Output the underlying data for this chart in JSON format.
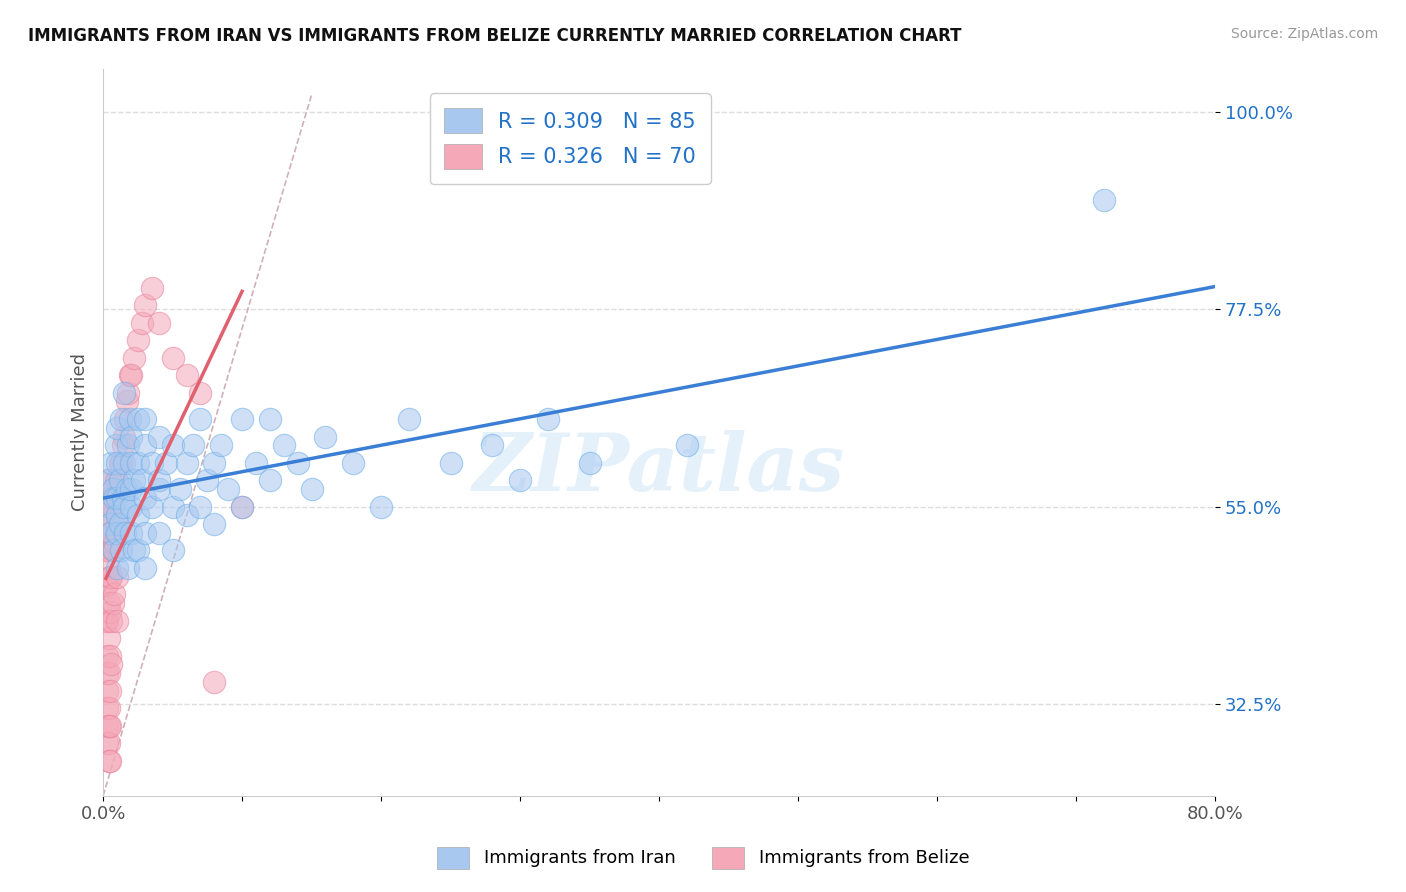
{
  "title": "IMMIGRANTS FROM IRAN VS IMMIGRANTS FROM BELIZE CURRENTLY MARRIED CORRELATION CHART",
  "source": "Source: ZipAtlas.com",
  "xlabel_bottom": "Immigrants from Iran",
  "xlabel_bottom2": "Immigrants from Belize",
  "ylabel": "Currently Married",
  "xlim": [
    0.0,
    0.8
  ],
  "ylim": [
    0.22,
    1.05
  ],
  "xticks": [
    0.0,
    0.1,
    0.2,
    0.3,
    0.4,
    0.5,
    0.6,
    0.7,
    0.8
  ],
  "xtick_labels": [
    "0.0%",
    "",
    "",
    "",
    "",
    "",
    "",
    "",
    "80.0%"
  ],
  "yticks": [
    0.325,
    0.55,
    0.775,
    1.0
  ],
  "ytick_labels": [
    "32.5%",
    "55.0%",
    "77.5%",
    "100.0%"
  ],
  "color_iran": "#a8c8f0",
  "color_belize": "#f4a8b8",
  "color_iran_edge": "#6aaee8",
  "color_belize_edge": "#e8809a",
  "color_iran_line": "#3a7fd5",
  "color_belize_line": "#e06070",
  "color_legend_text": "#2272c8",
  "color_diag": "#d0b0b8",
  "background_color": "#ffffff",
  "grid_color": "#dddddd",
  "watermark": "ZIPatlas",
  "iran_x": [
    0.005,
    0.005,
    0.005,
    0.006,
    0.006,
    0.007,
    0.008,
    0.008,
    0.009,
    0.01,
    0.01,
    0.01,
    0.01,
    0.01,
    0.01,
    0.012,
    0.012,
    0.013,
    0.013,
    0.014,
    0.015,
    0.015,
    0.015,
    0.016,
    0.017,
    0.018,
    0.018,
    0.019,
    0.02,
    0.02,
    0.02,
    0.02,
    0.02,
    0.022,
    0.022,
    0.025,
    0.025,
    0.025,
    0.025,
    0.028,
    0.03,
    0.03,
    0.03,
    0.03,
    0.03,
    0.035,
    0.035,
    0.04,
    0.04,
    0.04,
    0.04,
    0.045,
    0.05,
    0.05,
    0.05,
    0.055,
    0.06,
    0.06,
    0.065,
    0.07,
    0.07,
    0.075,
    0.08,
    0.08,
    0.085,
    0.09,
    0.1,
    0.1,
    0.11,
    0.12,
    0.12,
    0.13,
    0.14,
    0.15,
    0.16,
    0.18,
    0.2,
    0.22,
    0.25,
    0.28,
    0.3,
    0.32,
    0.35,
    0.42,
    0.72
  ],
  "iran_y": [
    0.55,
    0.58,
    0.53,
    0.6,
    0.52,
    0.57,
    0.56,
    0.5,
    0.62,
    0.54,
    0.6,
    0.56,
    0.48,
    0.64,
    0.52,
    0.58,
    0.53,
    0.65,
    0.5,
    0.56,
    0.6,
    0.55,
    0.68,
    0.52,
    0.57,
    0.62,
    0.48,
    0.65,
    0.55,
    0.6,
    0.52,
    0.57,
    0.63,
    0.58,
    0.5,
    0.6,
    0.54,
    0.65,
    0.5,
    0.58,
    0.62,
    0.56,
    0.52,
    0.65,
    0.48,
    0.6,
    0.55,
    0.57,
    0.63,
    0.52,
    0.58,
    0.6,
    0.55,
    0.62,
    0.5,
    0.57,
    0.6,
    0.54,
    0.62,
    0.55,
    0.65,
    0.58,
    0.6,
    0.53,
    0.62,
    0.57,
    0.65,
    0.55,
    0.6,
    0.58,
    0.65,
    0.62,
    0.6,
    0.57,
    0.63,
    0.6,
    0.55,
    0.65,
    0.6,
    0.62,
    0.58,
    0.65,
    0.6,
    0.62,
    0.9
  ],
  "belize_x": [
    0.002,
    0.002,
    0.002,
    0.002,
    0.003,
    0.003,
    0.003,
    0.003,
    0.003,
    0.003,
    0.003,
    0.003,
    0.003,
    0.003,
    0.003,
    0.004,
    0.004,
    0.004,
    0.004,
    0.004,
    0.004,
    0.004,
    0.004,
    0.004,
    0.004,
    0.005,
    0.005,
    0.005,
    0.005,
    0.005,
    0.005,
    0.005,
    0.005,
    0.006,
    0.006,
    0.006,
    0.006,
    0.006,
    0.007,
    0.007,
    0.007,
    0.008,
    0.008,
    0.008,
    0.009,
    0.009,
    0.01,
    0.01,
    0.01,
    0.01,
    0.012,
    0.013,
    0.014,
    0.015,
    0.016,
    0.017,
    0.018,
    0.019,
    0.02,
    0.022,
    0.025,
    0.028,
    0.03,
    0.035,
    0.04,
    0.05,
    0.06,
    0.07,
    0.08,
    0.1
  ],
  "belize_y": [
    0.54,
    0.5,
    0.46,
    0.42,
    0.58,
    0.54,
    0.5,
    0.46,
    0.42,
    0.38,
    0.34,
    0.3,
    0.28,
    0.32,
    0.36,
    0.56,
    0.52,
    0.48,
    0.44,
    0.4,
    0.36,
    0.32,
    0.28,
    0.26,
    0.3,
    0.55,
    0.51,
    0.47,
    0.43,
    0.38,
    0.34,
    0.3,
    0.26,
    0.56,
    0.52,
    0.47,
    0.42,
    0.37,
    0.55,
    0.5,
    0.44,
    0.57,
    0.51,
    0.45,
    0.58,
    0.52,
    0.58,
    0.53,
    0.47,
    0.42,
    0.6,
    0.6,
    0.62,
    0.63,
    0.65,
    0.67,
    0.68,
    0.7,
    0.7,
    0.72,
    0.74,
    0.76,
    0.78,
    0.8,
    0.76,
    0.72,
    0.7,
    0.68,
    0.35,
    0.55
  ]
}
